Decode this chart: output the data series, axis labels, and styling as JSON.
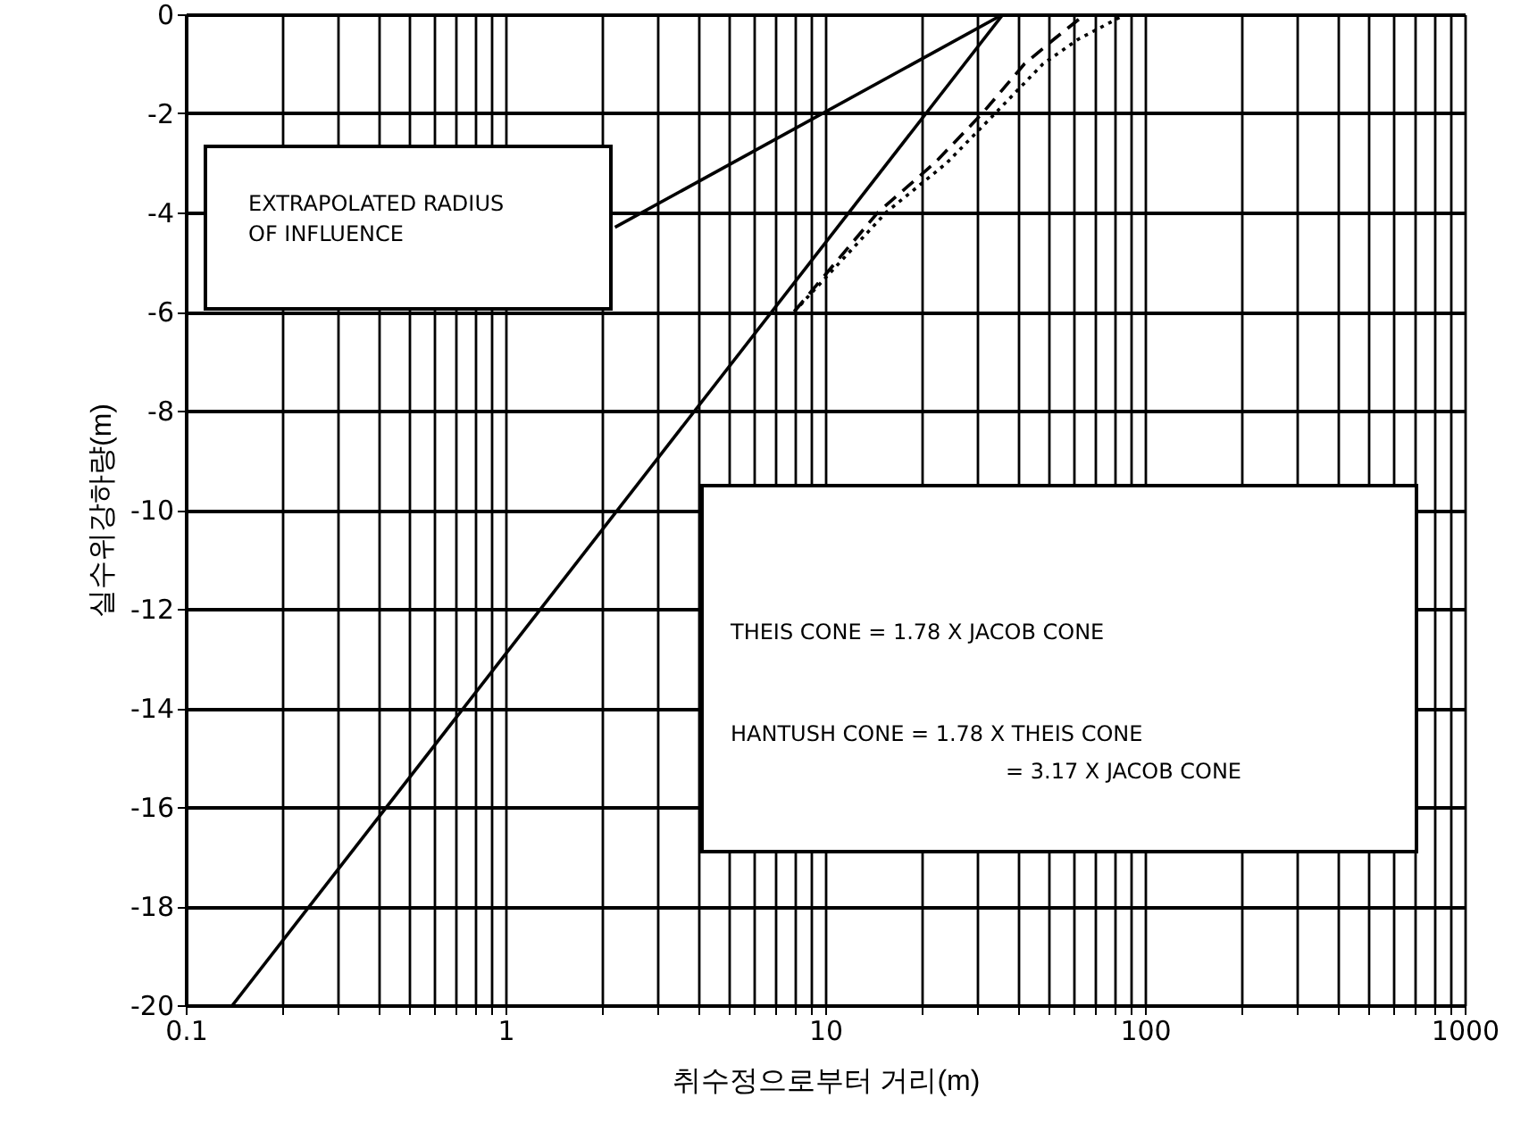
{
  "chart_data": {
    "type": "line",
    "xlabel": "취수정으로부터 거리(m)",
    "ylabel": "실수위강하량(m)",
    "log": "x",
    "grid": true,
    "marker": "none",
    "xlim": [
      0.1,
      1000
    ],
    "ylim": [
      -20,
      0
    ],
    "xticks": [
      {
        "value": 0.1,
        "label": "0.1"
      },
      {
        "value": 0.2,
        "label": null
      },
      {
        "value": 0.3,
        "label": null
      },
      {
        "value": 0.4,
        "label": null
      },
      {
        "value": 0.5,
        "label": null
      },
      {
        "value": 0.6,
        "label": null
      },
      {
        "value": 0.7,
        "label": null
      },
      {
        "value": 0.8,
        "label": null
      },
      {
        "value": 0.9,
        "label": null
      },
      1,
      {
        "value": 2,
        "label": null
      },
      {
        "value": 3,
        "label": null
      },
      {
        "value": 4,
        "label": null
      },
      {
        "value": 5,
        "label": null
      },
      {
        "value": 6,
        "label": null
      },
      {
        "value": 7,
        "label": null
      },
      {
        "value": 8,
        "label": null
      },
      {
        "value": 9,
        "label": null
      },
      10,
      {
        "value": 20,
        "label": null
      },
      {
        "value": 30,
        "label": null
      },
      {
        "value": 40,
        "label": null
      },
      {
        "value": 50,
        "label": null
      },
      {
        "value": 60,
        "label": null
      },
      {
        "value": 70,
        "label": null
      },
      {
        "value": 80,
        "label": null
      },
      {
        "value": 90,
        "label": null
      },
      100,
      {
        "value": 200,
        "label": null
      },
      {
        "value": 300,
        "label": null
      },
      {
        "value": 400,
        "label": null
      },
      {
        "value": 500,
        "label": null
      },
      {
        "value": 600,
        "label": null
      },
      {
        "value": 700,
        "label": null
      },
      {
        "value": 800,
        "label": null
      },
      {
        "value": 900,
        "label": null
      },
      1000
    ],
    "yticks": [
      -20,
      -18,
      -16,
      -14,
      -12,
      -10,
      -8,
      -6,
      -4,
      -2,
      0
    ],
    "series": [
      {
        "color": "#000000",
        "line_style": "solid",
        "x": [
          0.14,
          36
        ],
        "values": [
          -20,
          0
        ]
      },
      {
        "color": "#000000",
        "line_style": "solid",
        "x": [
          2.2,
          36
        ],
        "values": [
          -4.3,
          0
        ]
      },
      {
        "color": "#000000",
        "line_style": "dashed",
        "x": [
          8,
          14.6,
          22,
          31,
          42,
          52,
          65
        ],
        "values": [
          -6,
          -4,
          -3,
          -2,
          -1,
          -0.5,
          0
        ]
      },
      {
        "color": "#000000",
        "line_style": "dotted",
        "x": [
          8,
          15.5,
          24,
          34,
          48,
          62,
          87
        ],
        "values": [
          -6,
          -4,
          -3,
          -2,
          -1,
          -0.5,
          0
        ]
      }
    ],
    "annotations": [
      "EXTRAPOLATED RADIUS\nOF INFLUENCE",
      "THEIS CONE = 1.78 X JACOB CONE",
      "HANTUSH CONE = 1.78 X THEIS CONE",
      "= 3.17 X JACOB CONE"
    ]
  }
}
